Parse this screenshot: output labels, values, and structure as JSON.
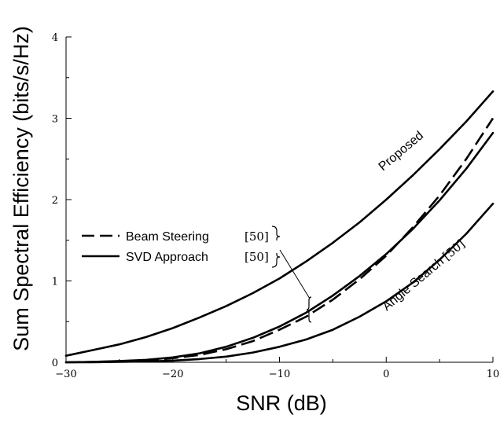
{
  "chart_data": {
    "type": "line",
    "title": "",
    "xlabel": "SNR (dB)",
    "ylabel": "Sum Spectral Efficiency (bits/s/Hz)",
    "xlim": [
      -30,
      10
    ],
    "ylim": [
      0,
      4
    ],
    "xticks": [
      -30,
      -20,
      -10,
      0,
      10
    ],
    "yticks": [
      0,
      1,
      2,
      3,
      4
    ],
    "xtick_labels": [
      "−30",
      "−20",
      "−10",
      "0",
      "10"
    ],
    "ytick_labels": [
      "0",
      "1",
      "2",
      "3",
      "4"
    ],
    "grid": false,
    "legend_position": "middle-left",
    "series": [
      {
        "name": "Proposed",
        "style": "solid",
        "x": [
          -30,
          -27.5,
          -25,
          -22.5,
          -20,
          -17.5,
          -15,
          -12.5,
          -10,
          -7.5,
          -5,
          -2.5,
          0,
          2.5,
          5,
          7.5,
          10
        ],
        "y": [
          0.08,
          0.15,
          0.22,
          0.31,
          0.42,
          0.55,
          0.69,
          0.85,
          1.03,
          1.24,
          1.47,
          1.72,
          2.0,
          2.3,
          2.62,
          2.96,
          3.33
        ]
      },
      {
        "name": "Beam Steering",
        "ref": "[50]",
        "style": "dashed",
        "x": [
          -30,
          -27.5,
          -25,
          -22.5,
          -20,
          -17.5,
          -15,
          -12.5,
          -10,
          -7.5,
          -5,
          -2.5,
          0,
          2.5,
          5,
          7.5,
          10
        ],
        "y": [
          0.0,
          0.005,
          0.01,
          0.02,
          0.05,
          0.09,
          0.16,
          0.26,
          0.4,
          0.56,
          0.77,
          1.02,
          1.31,
          1.66,
          2.05,
          2.5,
          3.0
        ]
      },
      {
        "name": "SVD Approach",
        "ref": "[50]",
        "style": "solid",
        "x": [
          -30,
          -27.5,
          -25,
          -22.5,
          -20,
          -17.5,
          -15,
          -12.5,
          -10,
          -7.5,
          -5,
          -2.5,
          0,
          2.5,
          5,
          7.5,
          10
        ],
        "y": [
          0.0,
          0.005,
          0.015,
          0.03,
          0.06,
          0.11,
          0.19,
          0.3,
          0.44,
          0.61,
          0.82,
          1.06,
          1.33,
          1.64,
          1.99,
          2.38,
          2.82
        ]
      },
      {
        "name": "Angle Search",
        "ref": "[50]",
        "style": "solid",
        "x": [
          -30,
          -27.5,
          -25,
          -22.5,
          -20,
          -17.5,
          -15,
          -12.5,
          -10,
          -7.5,
          -5,
          -2.5,
          0,
          2.5,
          5,
          7.5,
          10
        ],
        "y": [
          0.0,
          0.0,
          0.005,
          0.01,
          0.02,
          0.04,
          0.07,
          0.12,
          0.19,
          0.28,
          0.4,
          0.56,
          0.75,
          0.98,
          1.26,
          1.58,
          1.95
        ]
      }
    ],
    "annotations": [
      {
        "text": "Proposed"
      },
      {
        "text": "Angle Search",
        "ref": "[50]"
      }
    ]
  }
}
